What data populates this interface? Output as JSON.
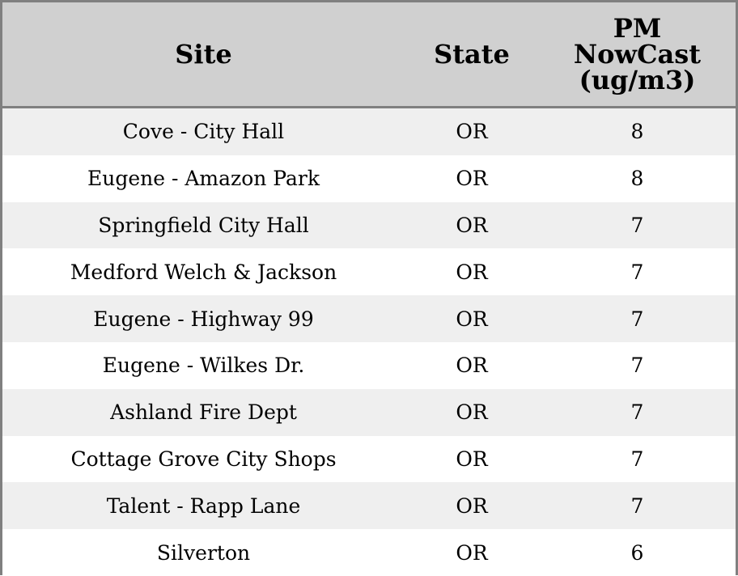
{
  "headers": {
    "site": "Site",
    "state": "State",
    "pm": "PM NowCast (ug/m3)"
  },
  "rows": [
    {
      "site": "Cove - City Hall",
      "state": "OR",
      "pm": "8"
    },
    {
      "site": "Eugene - Amazon Park",
      "state": "OR",
      "pm": "8"
    },
    {
      "site": "Springfield City Hall",
      "state": "OR",
      "pm": "7"
    },
    {
      "site": "Medford Welch & Jackson",
      "state": "OR",
      "pm": "7"
    },
    {
      "site": "Eugene - Highway 99",
      "state": "OR",
      "pm": "7"
    },
    {
      "site": "Eugene - Wilkes Dr.",
      "state": "OR",
      "pm": "7"
    },
    {
      "site": "Ashland Fire Dept",
      "state": "OR",
      "pm": "7"
    },
    {
      "site": "Cottage Grove City Shops",
      "state": "OR",
      "pm": "7"
    },
    {
      "site": "Talent - Rapp Lane",
      "state": "OR",
      "pm": "7"
    },
    {
      "site": "Silverton",
      "state": "OR",
      "pm": "6"
    }
  ]
}
